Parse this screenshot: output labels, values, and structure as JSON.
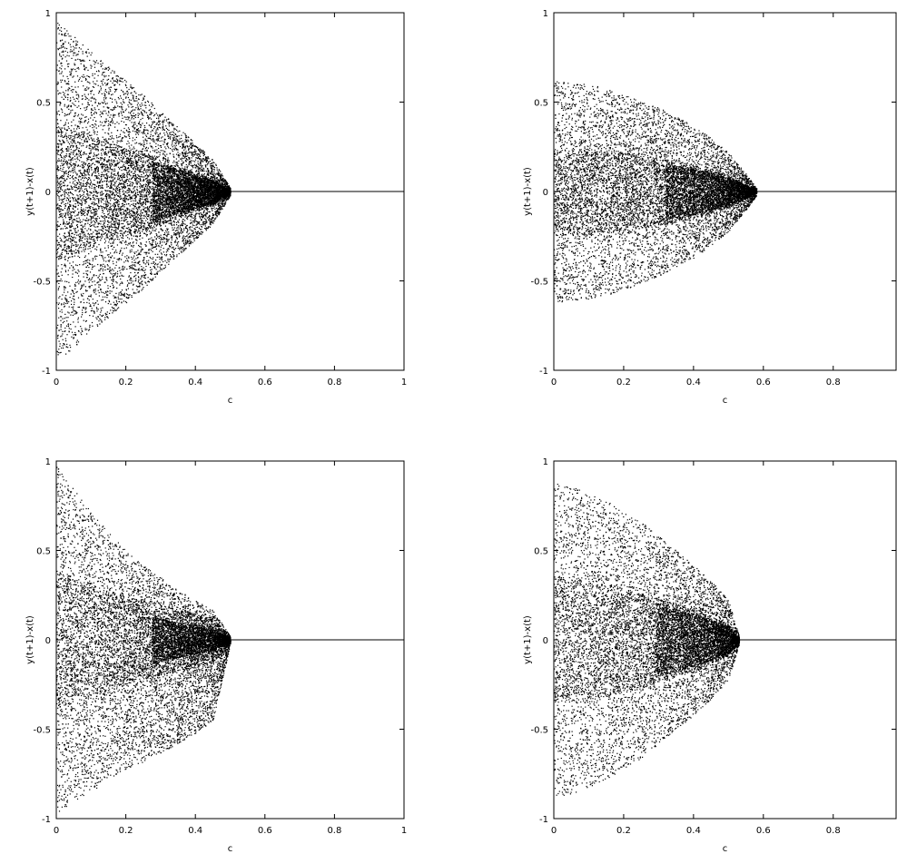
{
  "chart_data": [
    {
      "type": "scatter",
      "title": "",
      "xlabel": "c",
      "ylabel": "y(t+1)-x(t)",
      "xlim": [
        0,
        1
      ],
      "ylim": [
        -1,
        1
      ],
      "xticks": [
        0,
        0.2,
        0.4,
        0.6,
        0.8,
        1
      ],
      "xtick_labels": [
        "0",
        "0.2",
        "0.4",
        "0.6",
        "0.8",
        "1"
      ],
      "yticks": [
        -1,
        -0.5,
        0,
        0.5,
        1
      ],
      "ytick_labels": [
        "-1",
        "-0.5",
        "0",
        "0.5",
        "1"
      ],
      "grid": false,
      "point_color": "#000000",
      "envelope": [
        [
          0,
          0.95
        ],
        [
          0.1,
          0.78
        ],
        [
          0.2,
          0.62
        ],
        [
          0.3,
          0.45
        ],
        [
          0.4,
          0.27
        ],
        [
          0.45,
          0.18
        ],
        [
          0.47,
          0.1
        ],
        [
          0.5,
          0.02
        ]
      ],
      "collapse_c": 0.5,
      "series": [
        {
          "x": [
            0,
            0.05,
            0.1,
            0.15,
            0.2,
            0.25,
            0.3,
            0.35,
            0.4,
            0.45,
            0.5,
            0.6,
            0.7,
            0.8,
            0.9,
            1
          ],
          "y_upper": [
            0.95,
            0.87,
            0.78,
            0.7,
            0.62,
            0.54,
            0.45,
            0.36,
            0.27,
            0.18,
            0.02,
            0,
            0,
            0,
            0,
            0
          ],
          "y_lower": [
            -0.95,
            -0.87,
            -0.78,
            -0.7,
            -0.62,
            -0.54,
            -0.45,
            -0.36,
            -0.27,
            -0.18,
            -0.02,
            0,
            0,
            0,
            0,
            0
          ]
        }
      ]
    },
    {
      "type": "scatter",
      "title": "",
      "xlabel": "c",
      "ylabel": "y(t+1)-x(t)",
      "xlim": [
        0,
        0.98
      ],
      "ylim": [
        -1,
        1
      ],
      "xticks": [
        0,
        0.2,
        0.4,
        0.6,
        0.8
      ],
      "xtick_labels": [
        "0",
        "0.2",
        "0.4",
        "0.6",
        "0.8"
      ],
      "yticks": [
        -1,
        -0.5,
        0,
        0.5,
        1
      ],
      "ytick_labels": [
        "-1",
        "-0.5",
        "0",
        "0.5",
        "1"
      ],
      "grid": false,
      "point_color": "#000000",
      "envelope": [
        [
          0,
          0.62
        ],
        [
          0.1,
          0.6
        ],
        [
          0.2,
          0.55
        ],
        [
          0.3,
          0.47
        ],
        [
          0.4,
          0.37
        ],
        [
          0.5,
          0.22
        ],
        [
          0.55,
          0.1
        ],
        [
          0.58,
          0.02
        ]
      ],
      "collapse_c": 0.58,
      "series": [
        {
          "x": [
            0,
            0.05,
            0.1,
            0.15,
            0.2,
            0.25,
            0.3,
            0.35,
            0.4,
            0.45,
            0.5,
            0.55,
            0.58,
            0.7,
            0.8,
            0.98
          ],
          "y_upper": [
            0.62,
            0.61,
            0.6,
            0.58,
            0.55,
            0.51,
            0.47,
            0.42,
            0.37,
            0.3,
            0.22,
            0.1,
            0.02,
            0,
            0,
            0
          ],
          "y_lower": [
            -0.62,
            -0.61,
            -0.6,
            -0.58,
            -0.55,
            -0.51,
            -0.47,
            -0.42,
            -0.37,
            -0.3,
            -0.22,
            -0.1,
            -0.02,
            0,
            0,
            0
          ]
        }
      ]
    },
    {
      "type": "scatter",
      "title": "",
      "xlabel": "c",
      "ylabel": "y(t+1)-x(t)",
      "xlim": [
        0,
        1
      ],
      "ylim": [
        -1,
        1
      ],
      "xticks": [
        0,
        0.2,
        0.4,
        0.6,
        0.8,
        1
      ],
      "xtick_labels": [
        "0",
        "0.2",
        "0.4",
        "0.6",
        "0.8",
        "1"
      ],
      "yticks": [
        -1,
        -0.5,
        0,
        0.5,
        1
      ],
      "ytick_labels": [
        "-1",
        "-0.5",
        "0",
        "0.5",
        "1"
      ],
      "grid": false,
      "point_color": "#000000",
      "envelope": [
        [
          0,
          0.98
        ],
        [
          0.1,
          0.72
        ],
        [
          0.2,
          0.5
        ],
        [
          0.3,
          0.35
        ],
        [
          0.4,
          0.22
        ],
        [
          0.47,
          0.15
        ],
        [
          0.5,
          0.02
        ]
      ],
      "collapse_c": 0.5,
      "series": [
        {
          "x": [
            0,
            0.05,
            0.1,
            0.15,
            0.2,
            0.25,
            0.3,
            0.35,
            0.4,
            0.45,
            0.5,
            0.6,
            0.7,
            0.8,
            0.9,
            1
          ],
          "y_upper": [
            0.98,
            0.84,
            0.72,
            0.6,
            0.5,
            0.42,
            0.35,
            0.28,
            0.22,
            0.17,
            0.02,
            0,
            0,
            0,
            0,
            0
          ],
          "y_lower": [
            -0.98,
            -0.9,
            -0.85,
            -0.78,
            -0.72,
            -0.68,
            -0.63,
            -0.58,
            -0.52,
            -0.45,
            -0.02,
            0,
            0,
            0,
            0,
            0
          ]
        }
      ]
    },
    {
      "type": "scatter",
      "title": "",
      "xlabel": "c",
      "ylabel": "y(t+1)-x(t)",
      "xlim": [
        0,
        0.98
      ],
      "ylim": [
        -1,
        1
      ],
      "xticks": [
        0,
        0.2,
        0.4,
        0.6,
        0.8
      ],
      "xtick_labels": [
        "0",
        "0.2",
        "0.4",
        "0.6",
        "0.8"
      ],
      "yticks": [
        -1,
        -0.5,
        0,
        0.5,
        1
      ],
      "ytick_labels": [
        "-1",
        "-0.5",
        "0",
        "0.5",
        "1"
      ],
      "grid": false,
      "point_color": "#000000",
      "envelope": [
        [
          0,
          0.88
        ],
        [
          0.1,
          0.82
        ],
        [
          0.2,
          0.72
        ],
        [
          0.3,
          0.58
        ],
        [
          0.4,
          0.42
        ],
        [
          0.5,
          0.22
        ],
        [
          0.52,
          0.1
        ],
        [
          0.53,
          0.02
        ]
      ],
      "collapse_c": 0.53,
      "series": [
        {
          "x": [
            0,
            0.05,
            0.1,
            0.15,
            0.2,
            0.25,
            0.3,
            0.35,
            0.4,
            0.45,
            0.5,
            0.53,
            0.6,
            0.7,
            0.8,
            0.98
          ],
          "y_upper": [
            0.88,
            0.86,
            0.82,
            0.78,
            0.72,
            0.66,
            0.58,
            0.5,
            0.42,
            0.33,
            0.22,
            0.02,
            0,
            0,
            0,
            0
          ],
          "y_lower": [
            -0.88,
            -0.86,
            -0.82,
            -0.78,
            -0.72,
            -0.66,
            -0.58,
            -0.5,
            -0.42,
            -0.33,
            -0.22,
            -0.02,
            0,
            0,
            0,
            0
          ]
        }
      ]
    }
  ]
}
